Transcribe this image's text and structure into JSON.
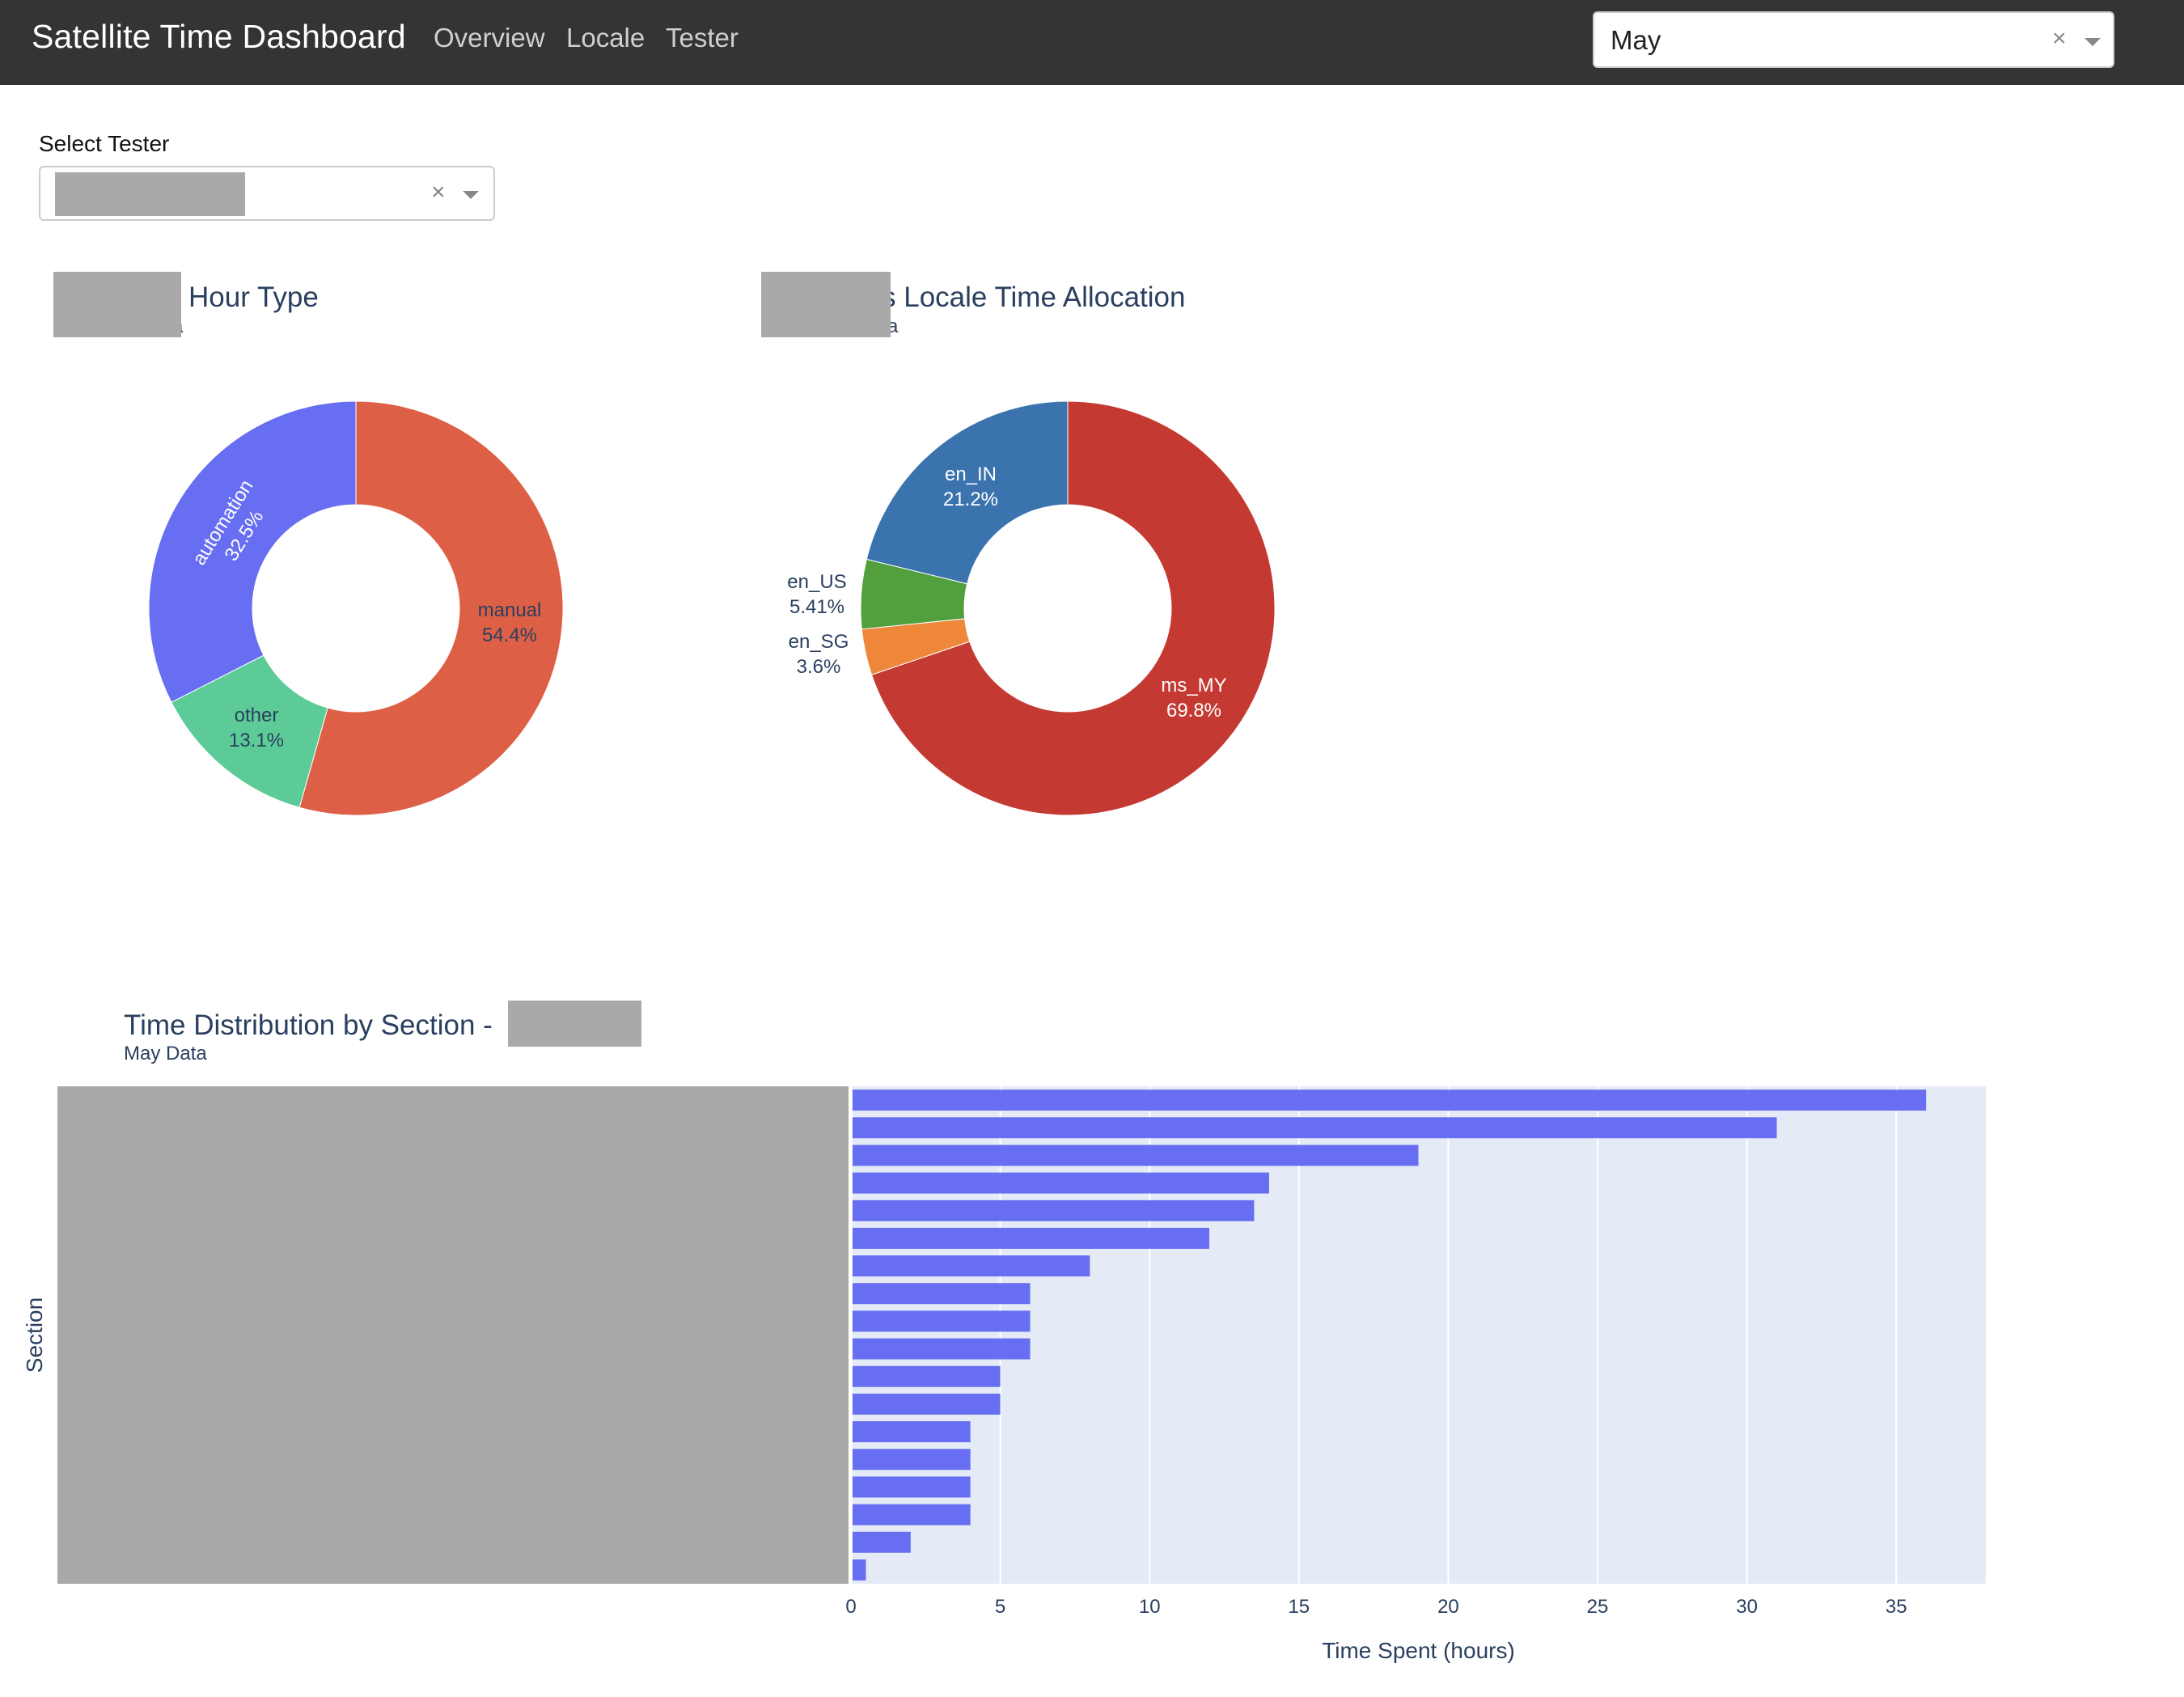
{
  "app": {
    "title": "Satellite Time Dashboard",
    "nav": [
      "Overview",
      "Locale",
      "Tester"
    ],
    "month_select": {
      "value": "May",
      "clear_glyph": "×"
    }
  },
  "filters": {
    "tester_label": "Select Tester",
    "clear_glyph": "×"
  },
  "charts": {
    "hour_type": {
      "title_visible": "Hour Type",
      "subtitle_visible": "a"
    },
    "locale": {
      "title_visible": "s Locale Time Allocation",
      "subtitle_visible": "a"
    },
    "section": {
      "title": "Time Distribution by Section -",
      "subtitle": "May Data"
    }
  },
  "chart_data": [
    {
      "type": "pie",
      "hole": true,
      "slices": [
        {
          "label": "manual",
          "value": 54.4,
          "text": "54.4%",
          "color": "#dd6046"
        },
        {
          "label": "other",
          "value": 13.1,
          "text": "13.1%",
          "color": "#5ccb97"
        },
        {
          "label": "automation",
          "value": 32.5,
          "text": "32.5%",
          "color": "#676ef2"
        }
      ]
    },
    {
      "type": "pie",
      "hole": true,
      "slices": [
        {
          "label": "ms_MY",
          "value": 69.8,
          "text": "69.8%",
          "color": "#c43a33"
        },
        {
          "label": "en_SG",
          "value": 3.6,
          "text": "3.6%",
          "color": "#ee8739"
        },
        {
          "label": "en_US",
          "value": 5.41,
          "text": "5.41%",
          "color": "#52a03d"
        },
        {
          "label": "en_IN",
          "value": 21.2,
          "text": "21.2%",
          "color": "#3b73af"
        }
      ]
    },
    {
      "type": "bar",
      "orientation": "horizontal",
      "values": [
        36,
        31,
        19,
        14,
        13.5,
        12,
        8,
        6,
        6,
        6,
        5,
        5,
        4,
        4,
        4,
        4,
        2,
        0.5
      ],
      "xlabel": "Time Spent (hours)",
      "ylabel": "Section",
      "xlim": [
        0,
        38
      ],
      "xticks": [
        0,
        5,
        10,
        15,
        20,
        25,
        30,
        35
      ],
      "bar_color": "#676ef2",
      "plot_bg": "#e5ebf6",
      "grid": true
    }
  ]
}
